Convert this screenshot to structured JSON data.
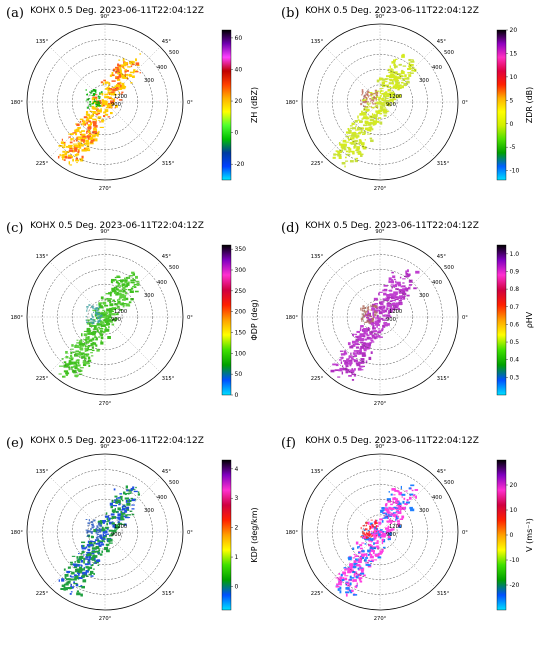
{
  "figure": {
    "colors": {
      "ring": "#444444",
      "axis": "#888888",
      "ring_label": "#9a9a9a"
    }
  },
  "chart_data": [
    {
      "panel_label": "(a)",
      "type": "polar-radar-ppi",
      "title": "KOHX 0.5 Deg. 2023-06-11T22:04:12Z",
      "angle_ticks": [
        "90°",
        "45°",
        "0°",
        "315°",
        "270°",
        "225°",
        "180°",
        "135°"
      ],
      "range_labels": [
        "300",
        "400",
        "500"
      ],
      "inner_range_labels": [
        "1200",
        "900"
      ],
      "colorbar": {
        "label": "ZH (dBZ)",
        "ticks": [
          "60",
          "40",
          "20",
          "0",
          "-20"
        ],
        "range": [
          -30,
          65
        ],
        "colors": [
          "#00e8ff",
          "#0040ff",
          "#003ca0",
          "#00c000",
          "#50ff30",
          "#ffff00",
          "#ffb000",
          "#ff4000",
          "#c00000",
          "#ff40ff",
          "#7000b0",
          "#000000"
        ]
      },
      "echo": {
        "primary": "#ffcc00",
        "secondary": "#ff6020",
        "core": "#00b000"
      }
    },
    {
      "panel_label": "(b)",
      "type": "polar-radar-ppi",
      "title": "KOHX 0.5 Deg. 2023-06-11T22:04:12Z",
      "angle_ticks": [
        "90°",
        "45°",
        "0°",
        "315°",
        "270°",
        "225°",
        "180°",
        "135°"
      ],
      "range_labels": [
        "300",
        "400",
        "500"
      ],
      "inner_range_labels": [
        "1200",
        "900"
      ],
      "colorbar": {
        "label": "ZDR (dB)",
        "ticks": [
          "20",
          "15",
          "10",
          "5",
          "0",
          "-5",
          "-10"
        ],
        "range": [
          -12,
          20
        ],
        "colors": [
          "#00e0ff",
          "#0060ff",
          "#00a000",
          "#50e000",
          "#d0f000",
          "#ffff00",
          "#ffb000",
          "#ff2000",
          "#e00040",
          "#ff30c0",
          "#9000c0",
          "#000000"
        ]
      },
      "echo": {
        "primary": "#d4ea20",
        "secondary": "#c8e040",
        "core": "#c07060"
      }
    },
    {
      "panel_label": "(c)",
      "type": "polar-radar-ppi",
      "title": "KOHX 0.5 Deg. 2023-06-11T22:04:12Z",
      "angle_ticks": [
        "90°",
        "45°",
        "0°",
        "315°",
        "270°",
        "225°",
        "180°",
        "135°"
      ],
      "range_labels": [
        "300",
        "400",
        "500"
      ],
      "inner_range_labels": [
        "1200",
        "900"
      ],
      "colorbar": {
        "label": "ΦDP (deg)",
        "ticks": [
          "350",
          "300",
          "250",
          "200",
          "150",
          "100",
          "50",
          "0"
        ],
        "range": [
          0,
          360
        ],
        "colors": [
          "#00e0ff",
          "#0050ff",
          "#00a000",
          "#40e000",
          "#ffff00",
          "#ffa000",
          "#ff2000",
          "#d00040",
          "#ff30d0",
          "#8000c0",
          "#000000"
        ]
      },
      "echo": {
        "primary": "#40c020",
        "secondary": "#60d040",
        "core": "#40a0a0"
      }
    },
    {
      "panel_label": "(d)",
      "type": "polar-radar-ppi",
      "title": "KOHX 0.5 Deg. 2023-06-11T22:04:12Z",
      "angle_ticks": [
        "90°",
        "45°",
        "0°",
        "315°",
        "270°",
        "225°",
        "180°",
        "135°"
      ],
      "range_labels": [
        "300",
        "400",
        "500"
      ],
      "inner_range_labels": [
        "1200",
        "900"
      ],
      "colorbar": {
        "label": "ρHV",
        "ticks": [
          "1.0",
          "0.9",
          "0.8",
          "0.7",
          "0.6",
          "0.5",
          "0.4",
          "0.3"
        ],
        "range": [
          0.2,
          1.05
        ],
        "colors": [
          "#00e0ff",
          "#0050ff",
          "#00a000",
          "#40e000",
          "#ffff00",
          "#ffa000",
          "#ff2000",
          "#d00040",
          "#ff30d0",
          "#8000c0",
          "#000000"
        ]
      },
      "echo": {
        "primary": "#c040d0",
        "secondary": "#b030c0",
        "core": "#b07060"
      }
    },
    {
      "panel_label": "(e)",
      "type": "polar-radar-ppi",
      "title": "KOHX 0.5 Deg. 2023-06-11T22:04:12Z",
      "angle_ticks": [
        "90°",
        "45°",
        "0°",
        "315°",
        "270°",
        "225°",
        "180°",
        "135°"
      ],
      "range_labels": [
        "300",
        "400",
        "500"
      ],
      "inner_range_labels": [
        "1200",
        "900"
      ],
      "colorbar": {
        "label": "KDP (deg/km)",
        "ticks": [
          "4",
          "3",
          "2",
          "1",
          "0"
        ],
        "range": [
          -0.8,
          4.3
        ],
        "colors": [
          "#00e0ff",
          "#0050ff",
          "#00a000",
          "#40e000",
          "#ffff00",
          "#ffa000",
          "#ff2000",
          "#d00040",
          "#ff30d0",
          "#8000c0",
          "#000000"
        ]
      },
      "echo": {
        "primary": "#20a040",
        "secondary": "#2050e0",
        "core": "#3060c0"
      }
    },
    {
      "panel_label": "(f)",
      "type": "polar-radar-ppi",
      "title": "KOHX 0.5 Deg. 2023-06-11T22:04:12Z",
      "angle_ticks": [
        "90°",
        "45°",
        "0°",
        "315°",
        "270°",
        "225°",
        "180°",
        "135°"
      ],
      "range_labels": [
        "300",
        "400",
        "500"
      ],
      "inner_range_labels": [
        "1200",
        "900"
      ],
      "colorbar": {
        "label": "V (ms⁻¹)",
        "ticks": [
          "20",
          "10",
          "0",
          "-10",
          "-20"
        ],
        "range": [
          -30,
          30
        ],
        "colors": [
          "#00e0ff",
          "#0050ff",
          "#00a000",
          "#40e000",
          "#ffff00",
          "#ffa000",
          "#ff2000",
          "#d00040",
          "#ff30d0",
          "#8000c0",
          "#000000"
        ]
      },
      "echo": {
        "primary": "#ff40e0",
        "secondary": "#2080ff",
        "core": "#ff2020"
      }
    }
  ]
}
